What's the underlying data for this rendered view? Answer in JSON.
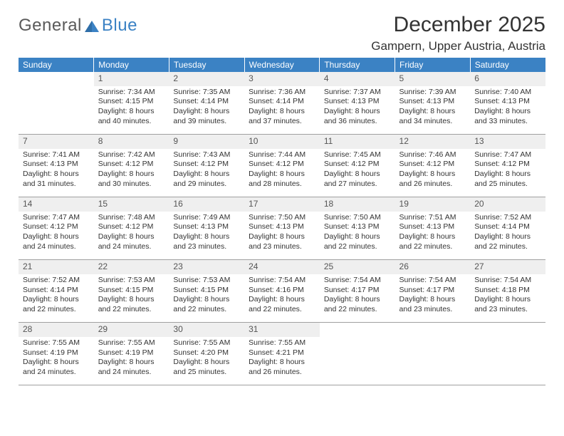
{
  "logo": {
    "word1": "General",
    "word2": "Blue"
  },
  "title": "December 2025",
  "location": "Gampern, Upper Austria, Austria",
  "day_headers": [
    "Sunday",
    "Monday",
    "Tuesday",
    "Wednesday",
    "Thursday",
    "Friday",
    "Saturday"
  ],
  "colors": {
    "header_bg": "#3b82c4",
    "header_text": "#ffffff",
    "daynum_bg": "#efefef",
    "text": "#333333",
    "row_border": "#a0a0a0",
    "logo_gray": "#5a5a5a",
    "logo_blue": "#3b82c4"
  },
  "weeks": [
    [
      null,
      {
        "n": "1",
        "sr": "7:34 AM",
        "ss": "4:15 PM",
        "dl": "8 hours and 40 minutes."
      },
      {
        "n": "2",
        "sr": "7:35 AM",
        "ss": "4:14 PM",
        "dl": "8 hours and 39 minutes."
      },
      {
        "n": "3",
        "sr": "7:36 AM",
        "ss": "4:14 PM",
        "dl": "8 hours and 37 minutes."
      },
      {
        "n": "4",
        "sr": "7:37 AM",
        "ss": "4:13 PM",
        "dl": "8 hours and 36 minutes."
      },
      {
        "n": "5",
        "sr": "7:39 AM",
        "ss": "4:13 PM",
        "dl": "8 hours and 34 minutes."
      },
      {
        "n": "6",
        "sr": "7:40 AM",
        "ss": "4:13 PM",
        "dl": "8 hours and 33 minutes."
      }
    ],
    [
      {
        "n": "7",
        "sr": "7:41 AM",
        "ss": "4:13 PM",
        "dl": "8 hours and 31 minutes."
      },
      {
        "n": "8",
        "sr": "7:42 AM",
        "ss": "4:12 PM",
        "dl": "8 hours and 30 minutes."
      },
      {
        "n": "9",
        "sr": "7:43 AM",
        "ss": "4:12 PM",
        "dl": "8 hours and 29 minutes."
      },
      {
        "n": "10",
        "sr": "7:44 AM",
        "ss": "4:12 PM",
        "dl": "8 hours and 28 minutes."
      },
      {
        "n": "11",
        "sr": "7:45 AM",
        "ss": "4:12 PM",
        "dl": "8 hours and 27 minutes."
      },
      {
        "n": "12",
        "sr": "7:46 AM",
        "ss": "4:12 PM",
        "dl": "8 hours and 26 minutes."
      },
      {
        "n": "13",
        "sr": "7:47 AM",
        "ss": "4:12 PM",
        "dl": "8 hours and 25 minutes."
      }
    ],
    [
      {
        "n": "14",
        "sr": "7:47 AM",
        "ss": "4:12 PM",
        "dl": "8 hours and 24 minutes."
      },
      {
        "n": "15",
        "sr": "7:48 AM",
        "ss": "4:12 PM",
        "dl": "8 hours and 24 minutes."
      },
      {
        "n": "16",
        "sr": "7:49 AM",
        "ss": "4:13 PM",
        "dl": "8 hours and 23 minutes."
      },
      {
        "n": "17",
        "sr": "7:50 AM",
        "ss": "4:13 PM",
        "dl": "8 hours and 23 minutes."
      },
      {
        "n": "18",
        "sr": "7:50 AM",
        "ss": "4:13 PM",
        "dl": "8 hours and 22 minutes."
      },
      {
        "n": "19",
        "sr": "7:51 AM",
        "ss": "4:13 PM",
        "dl": "8 hours and 22 minutes."
      },
      {
        "n": "20",
        "sr": "7:52 AM",
        "ss": "4:14 PM",
        "dl": "8 hours and 22 minutes."
      }
    ],
    [
      {
        "n": "21",
        "sr": "7:52 AM",
        "ss": "4:14 PM",
        "dl": "8 hours and 22 minutes."
      },
      {
        "n": "22",
        "sr": "7:53 AM",
        "ss": "4:15 PM",
        "dl": "8 hours and 22 minutes."
      },
      {
        "n": "23",
        "sr": "7:53 AM",
        "ss": "4:15 PM",
        "dl": "8 hours and 22 minutes."
      },
      {
        "n": "24",
        "sr": "7:54 AM",
        "ss": "4:16 PM",
        "dl": "8 hours and 22 minutes."
      },
      {
        "n": "25",
        "sr": "7:54 AM",
        "ss": "4:17 PM",
        "dl": "8 hours and 22 minutes."
      },
      {
        "n": "26",
        "sr": "7:54 AM",
        "ss": "4:17 PM",
        "dl": "8 hours and 23 minutes."
      },
      {
        "n": "27",
        "sr": "7:54 AM",
        "ss": "4:18 PM",
        "dl": "8 hours and 23 minutes."
      }
    ],
    [
      {
        "n": "28",
        "sr": "7:55 AM",
        "ss": "4:19 PM",
        "dl": "8 hours and 24 minutes."
      },
      {
        "n": "29",
        "sr": "7:55 AM",
        "ss": "4:19 PM",
        "dl": "8 hours and 24 minutes."
      },
      {
        "n": "30",
        "sr": "7:55 AM",
        "ss": "4:20 PM",
        "dl": "8 hours and 25 minutes."
      },
      {
        "n": "31",
        "sr": "7:55 AM",
        "ss": "4:21 PM",
        "dl": "8 hours and 26 minutes."
      },
      null,
      null,
      null
    ]
  ],
  "labels": {
    "sunrise": "Sunrise:",
    "sunset": "Sunset:",
    "daylight": "Daylight:"
  }
}
